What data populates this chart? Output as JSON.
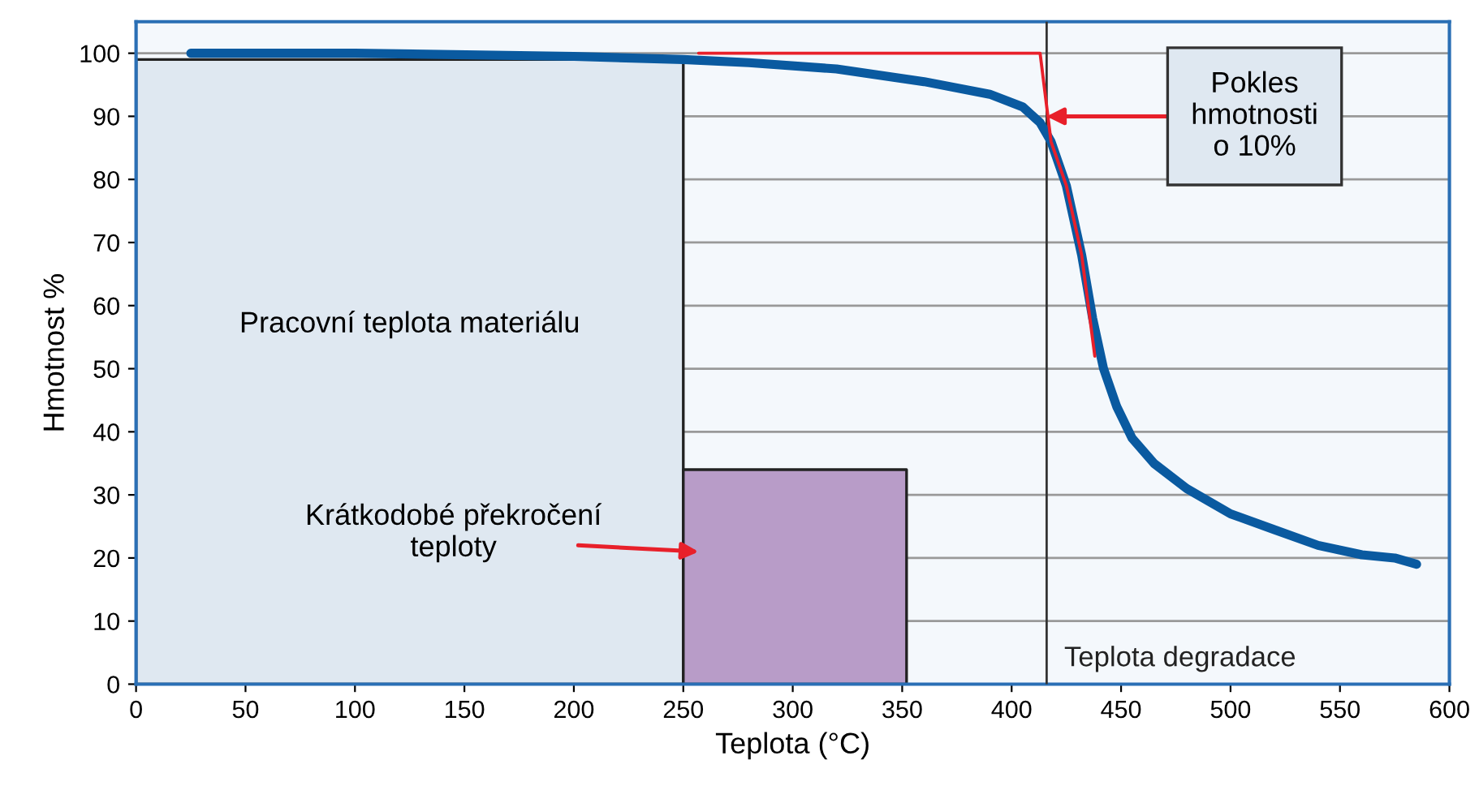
{
  "chart_data": {
    "type": "line",
    "xlabel": "Teplota (°C)",
    "ylabel": "Hmotnost %",
    "xlim": [
      0,
      600
    ],
    "ylim": [
      0,
      105
    ],
    "xticks": [
      0,
      50,
      100,
      150,
      200,
      250,
      300,
      350,
      400,
      450,
      500,
      550,
      600
    ],
    "yticks": [
      0,
      10,
      20,
      30,
      40,
      50,
      60,
      70,
      80,
      90,
      100
    ],
    "grid": "y",
    "marker": "none",
    "line_style": "solid",
    "series": [
      {
        "type": "area",
        "color": "#dfe8f1",
        "x": [
          0,
          250
        ],
        "values": [
          99,
          99
        ]
      },
      {
        "type": "area",
        "color": "#b89cc8",
        "x": [
          250,
          352
        ],
        "values": [
          34,
          34
        ]
      },
      {
        "color": "#0a5aa0",
        "x": [
          25,
          100,
          200,
          250,
          280,
          320,
          360,
          390,
          405,
          413,
          418,
          425,
          432,
          437,
          442,
          448,
          455,
          465,
          480,
          500,
          520,
          540,
          560,
          575,
          585
        ],
        "values": [
          100,
          100,
          99.5,
          99,
          98.5,
          97.5,
          95.5,
          93.5,
          91.5,
          89,
          86,
          79,
          68,
          58,
          50,
          44,
          39,
          35,
          31,
          27,
          24.5,
          22,
          20.5,
          20,
          19
        ]
      },
      {
        "color": "#e8202a",
        "x": [
          257,
          413,
          418,
          425,
          432,
          438
        ],
        "values": [
          100,
          100,
          86,
          79,
          68,
          52
        ]
      }
    ],
    "ref_lines": [
      {
        "axis": "x",
        "value": 416,
        "label": "Teplota degradace",
        "color": "#333333"
      }
    ],
    "annotations": [
      "Pracovní teplota materiálu",
      "Krátkodobé překročení\nteploty",
      {
        "text": "Pokles\nhmotnosti\no 10%",
        "x": 416,
        "y": 90
      }
    ]
  }
}
